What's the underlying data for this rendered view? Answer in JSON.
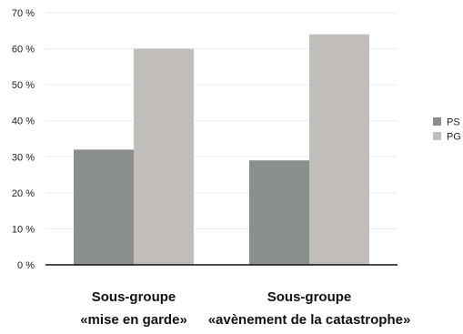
{
  "chart_data": {
    "type": "bar",
    "categories": [
      [
        "Sous-groupe",
        "«mise en garde»"
      ],
      [
        "Sous-groupe",
        "«avènement de la catastrophe»"
      ]
    ],
    "series": [
      {
        "name": "PS",
        "values": [
          32,
          29
        ],
        "color": "#8a8f8c"
      },
      {
        "name": "PG",
        "values": [
          60,
          64
        ],
        "color": "#c1bdba"
      }
    ],
    "y_ticks": [
      "0 %",
      "10 %",
      "20 %",
      "30 %",
      "40 %",
      "50 %",
      "60 %",
      "70 %"
    ],
    "ylim": [
      0,
      70
    ],
    "grid": true,
    "legend_position": "right",
    "title": "",
    "xlabel": "",
    "ylabel": ""
  }
}
